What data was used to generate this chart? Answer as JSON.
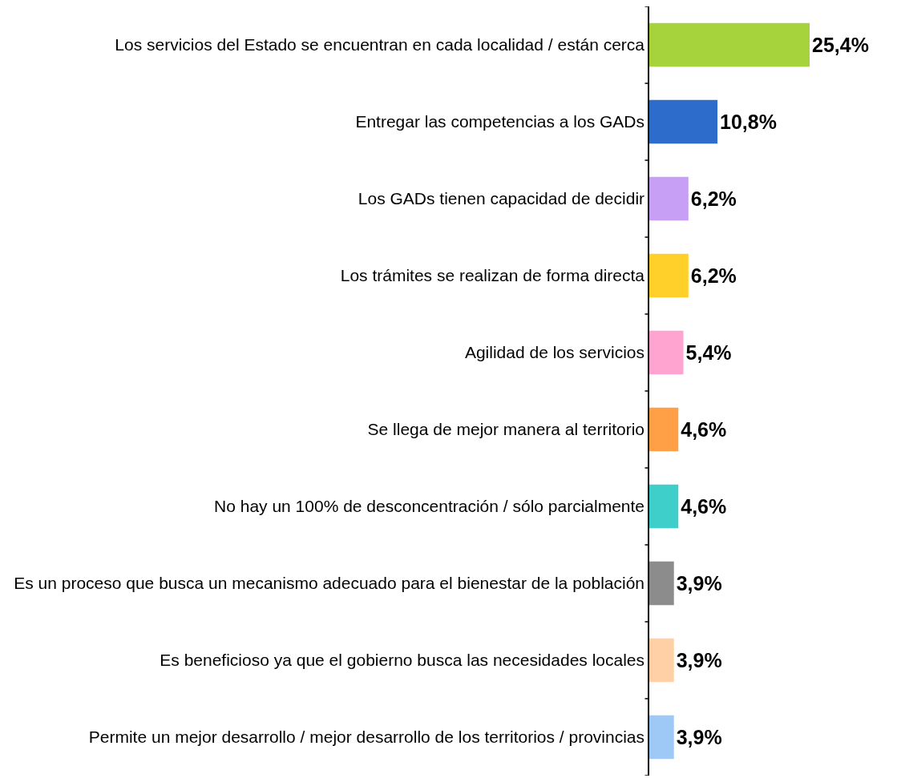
{
  "chart_data": {
    "type": "bar",
    "orientation": "horizontal",
    "categories": [
      "Los servicios del Estado se encuentran en cada localidad / están cerca",
      "Entregar las competencias a los GADs",
      "Los GADs tienen capacidad de decidir",
      "Los trámites se realizan de forma directa",
      "Agilidad de los servicios",
      "Se llega de mejor manera al territorio",
      "No hay un 100% de desconcentración / sólo parcialmente",
      "Es un proceso que busca un mecanismo adecuado para el bienestar de la población",
      "Es beneficioso ya que el gobierno busca las necesidades locales",
      "Permite un mejor desarrollo / mejor desarrollo de los territorios / provincias"
    ],
    "values": [
      25.4,
      10.8,
      6.2,
      6.2,
      5.4,
      4.6,
      4.6,
      3.9,
      3.9,
      3.9
    ],
    "value_labels": [
      "25,4%",
      "10,8%",
      "6,2%",
      "6,2%",
      "5,4%",
      "4,6%",
      "4,6%",
      "3,9%",
      "3,9%",
      "3,9%"
    ],
    "colors": [
      "#a6d33c",
      "#2e6ccc",
      "#c7a0f5",
      "#ffd02a",
      "#ffa3d0",
      "#ffa047",
      "#3ecfcb",
      "#8c8c8c",
      "#ffd0a6",
      "#9ec9f7"
    ],
    "grid": false,
    "legend": false
  }
}
